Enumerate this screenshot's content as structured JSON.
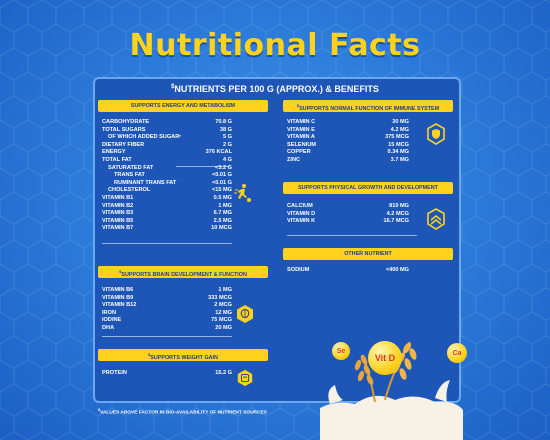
{
  "title": "Nutritional Facts",
  "header": {
    "mark": "$",
    "text": "NUTRIENTS PER 100 G (APPROX.) & BENEFITS"
  },
  "sections": {
    "energy": {
      "label": "SUPPORTS ENERGY AND METABOLISM",
      "icon": "runner-icon",
      "rows": [
        {
          "name": "CARBOHYDRATE",
          "value": "70.8 G"
        },
        {
          "name": "TOTAL SUGARS",
          "value": "38 G"
        },
        {
          "name": "OF WHICH ADDED SUGAR",
          "mark": "*",
          "value": "5 G"
        },
        {
          "name": "DIETARY FIBER",
          "value": "2 G"
        },
        {
          "name": "ENERGY",
          "value": "376 KCAL"
        },
        {
          "name": "TOTAL FAT",
          "value": "4 G"
        },
        {
          "name": "SATURATED FAT",
          "value": "<3.2 G"
        },
        {
          "name": "TRANS FAT",
          "value": "<0.01 G"
        },
        {
          "name": "RUMINANT TRANS FAT",
          "value": "<0.01 G"
        },
        {
          "name": "CHOLESTEROL",
          "value": "<15 MG"
        },
        {
          "name": "VITAMIN B1",
          "value": "0.5 MG"
        },
        {
          "name": "VITAMIN B2",
          "value": "1 MG"
        },
        {
          "name": "VITAMIN B3",
          "value": "6.7 MG"
        },
        {
          "name": "VITAMIN B5",
          "value": "2.5 MG"
        },
        {
          "name": "VITAMIN B7",
          "value": "10 MCG"
        }
      ]
    },
    "brain": {
      "label": "SUPPORTS BRAIN DEVELOPMENT & FUNCTION",
      "mark": "$",
      "icon": "brain-icon",
      "rows": [
        {
          "name": "VITAMIN B6",
          "value": "1 MG"
        },
        {
          "name": "VITAMIN B9",
          "value": "333 MCG"
        },
        {
          "name": "VITAMIN B12",
          "value": "2 MCG"
        },
        {
          "name": "IRON",
          "value": "12 MG"
        },
        {
          "name": "IODINE",
          "value": "75 MCG"
        },
        {
          "name": "DHA",
          "value": "20 MG"
        }
      ]
    },
    "weight": {
      "label": "SUPPORTS WEIGHT GAIN",
      "mark": "$",
      "icon": "weight-scale-icon",
      "rows": [
        {
          "name": "PROTEIN",
          "value": "15.2 G"
        }
      ]
    },
    "immune": {
      "label": "SUPPORTS NORMAL FUNCTION OF IMMUNE SYSTEM",
      "mark": "$",
      "icon": "shield-icon",
      "rows": [
        {
          "name": "VITAMIN C",
          "value": "30 MG"
        },
        {
          "name": "VITAMIN E",
          "value": "4.2 MG"
        },
        {
          "name": "VITAMIN A",
          "value": "375 MCG"
        },
        {
          "name": "SELENIUM",
          "value": "15 MCG"
        },
        {
          "name": "COPPER",
          "value": "0.34 MG"
        },
        {
          "name": "ZINC",
          "value": "3.7 MG"
        }
      ]
    },
    "growth": {
      "label": "SUPPORTS PHYSICAL GROWTH AND DEVELOPMENT",
      "icon": "growth-chevron-icon",
      "rows": [
        {
          "name": "CALCIUM",
          "value": "810 MG"
        },
        {
          "name": "VITAMIN D",
          "value": "4.2 MCG"
        },
        {
          "name": "VITAMIN K",
          "value": "16.7 MCG"
        }
      ]
    },
    "other": {
      "label": "OTHER NUTRIENT",
      "rows": [
        {
          "name": "SODIUM",
          "value": "<400 MG"
        }
      ]
    }
  },
  "bubbles": {
    "se": "Se",
    "vitd": "Vit D",
    "ca": "Ca"
  },
  "footnote": {
    "mark": "$",
    "text": "VALUES ABOVE FACTOR IN BIO-AVAILABILITY OF NUTRIENT SOURCES"
  },
  "colors": {
    "accent": "#ffd21e",
    "background": "#2a78d8",
    "card": "#1e56b8",
    "pill_text": "#1a3d8f"
  }
}
